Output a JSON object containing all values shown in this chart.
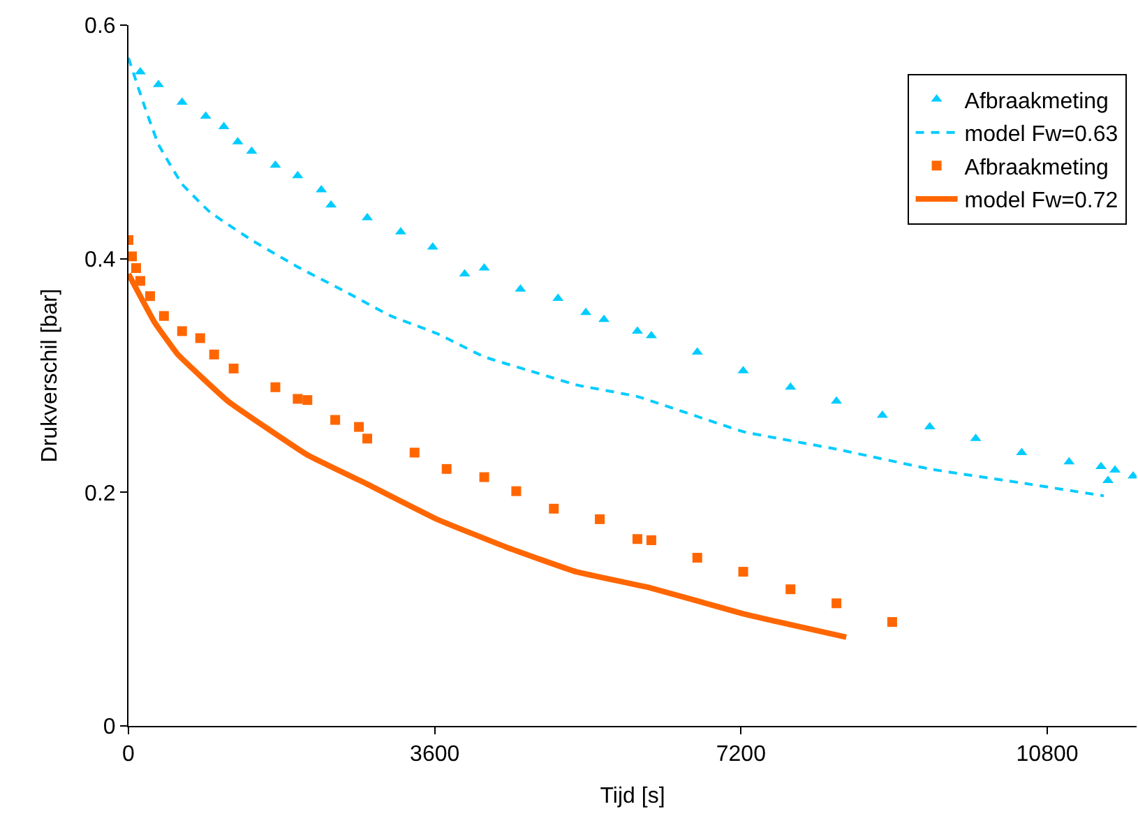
{
  "chart_data": {
    "type": "scatter",
    "xlabel": "Tijd [s]",
    "ylabel": "Drukverschil [bar]",
    "xlim": [
      0,
      11850
    ],
    "ylim": [
      0,
      0.6
    ],
    "xticks": [
      0,
      3600,
      7200,
      10800
    ],
    "yticks": [
      0,
      0.2,
      0.4,
      0.6
    ],
    "legend": "top right",
    "series": [
      {
        "name": "Afbraakmeting",
        "marker": "triangle",
        "color": "#00ccff",
        "x": [
          139,
          352,
          630,
          908,
          1121,
          1285,
          1448,
          1727,
          1989,
          2267,
          2381,
          2807,
          3200,
          3576,
          3952,
          4182,
          4607,
          5049,
          5376,
          5589,
          5982,
          6146,
          6686,
          7226,
          7782,
          8322,
          8862,
          9419,
          9959,
          10499,
          11056,
          11432,
          11514,
          11596,
          11809
        ],
        "values": [
          0.56,
          0.549,
          0.534,
          0.522,
          0.513,
          0.5,
          0.492,
          0.48,
          0.471,
          0.459,
          0.446,
          0.435,
          0.423,
          0.41,
          0.387,
          0.392,
          0.374,
          0.366,
          0.354,
          0.348,
          0.338,
          0.334,
          0.32,
          0.304,
          0.29,
          0.278,
          0.266,
          0.256,
          0.246,
          0.234,
          0.226,
          0.222,
          0.21,
          0.219,
          0.214
        ]
      },
      {
        "name": "model Fw=0.63",
        "type": "line",
        "line_style": "dashed",
        "color": "#00ccff",
        "x": [
          0,
          172,
          352,
          630,
          957,
          1448,
          1989,
          2545,
          3085,
          3625,
          4182,
          4722,
          5262,
          5982,
          7226,
          8322,
          9419,
          10499,
          11465
        ],
        "values": [
          0.572,
          0.534,
          0.498,
          0.464,
          0.44,
          0.416,
          0.393,
          0.372,
          0.351,
          0.336,
          0.316,
          0.304,
          0.292,
          0.282,
          0.252,
          0.237,
          0.22,
          0.208,
          0.197
        ]
      },
      {
        "name": "Afbraakmeting",
        "marker": "square",
        "color": "#ff6600",
        "x": [
          0,
          41,
          90,
          139,
          254,
          417,
          630,
          843,
          1007,
          1236,
          1727,
          1989,
          2103,
          2430,
          2709,
          2807,
          3363,
          3740,
          4182,
          4558,
          5000,
          5540,
          5982,
          6146,
          6686,
          7226,
          7782,
          8322,
          8977
        ],
        "values": [
          0.416,
          0.402,
          0.392,
          0.381,
          0.368,
          0.351,
          0.338,
          0.332,
          0.318,
          0.306,
          0.29,
          0.28,
          0.279,
          0.262,
          0.256,
          0.246,
          0.234,
          0.22,
          0.213,
          0.201,
          0.186,
          0.177,
          0.16,
          0.159,
          0.144,
          0.132,
          0.117,
          0.105,
          0.089
        ]
      },
      {
        "name": "model Fw=0.72",
        "type": "line",
        "line_style": "solid",
        "color": "#ff6600",
        "x": [
          0,
          303,
          581,
          1170,
          2103,
          2807,
          3625,
          4443,
          5262,
          6146,
          7226,
          8437
        ],
        "values": [
          0.387,
          0.346,
          0.318,
          0.278,
          0.232,
          0.207,
          0.177,
          0.153,
          0.132,
          0.118,
          0.096,
          0.076
        ]
      }
    ]
  }
}
